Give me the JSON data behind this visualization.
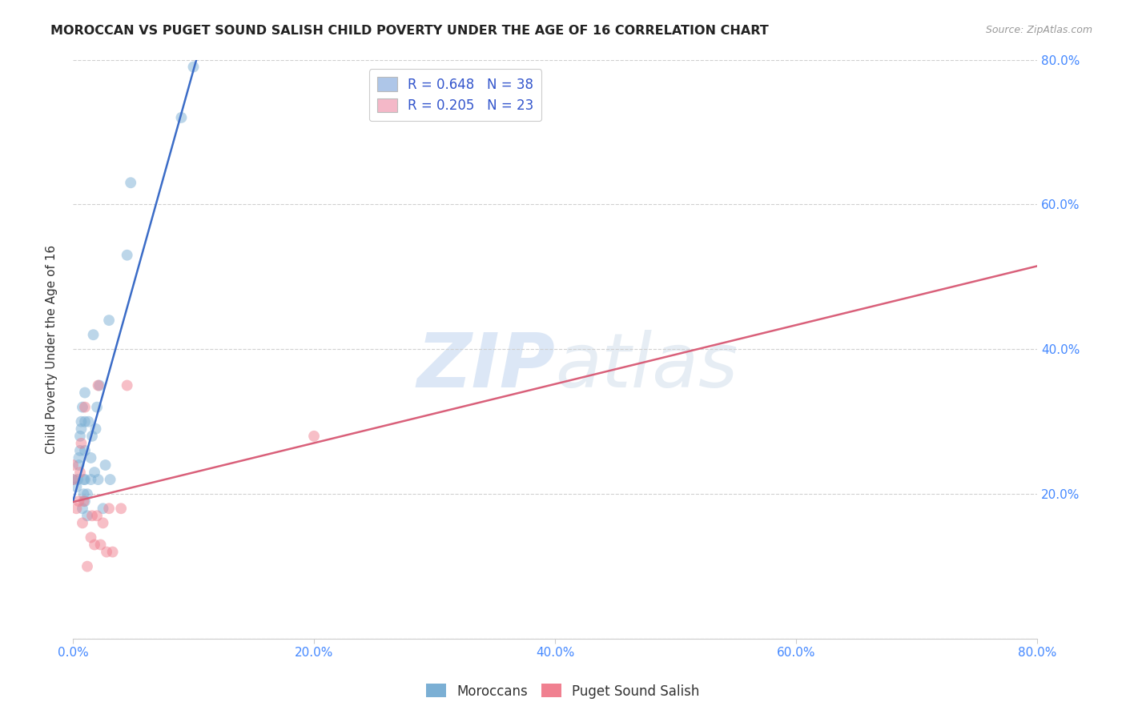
{
  "title": "MOROCCAN VS PUGET SOUND SALISH CHILD POVERTY UNDER THE AGE OF 16 CORRELATION CHART",
  "source": "Source: ZipAtlas.com",
  "ylabel": "Child Poverty Under the Age of 16",
  "xlim": [
    0.0,
    0.8
  ],
  "ylim": [
    0.0,
    0.8
  ],
  "xticks": [
    0.0,
    0.2,
    0.4,
    0.6,
    0.8
  ],
  "yticks": [
    0.0,
    0.2,
    0.4,
    0.6,
    0.8
  ],
  "xtick_labels": [
    "0.0%",
    "20.0%",
    "40.0%",
    "60.0%",
    "80.0%"
  ],
  "right_ytick_labels": [
    "20.0%",
    "40.0%",
    "60.0%",
    "80.0%"
  ],
  "right_yticks": [
    0.2,
    0.4,
    0.6,
    0.8
  ],
  "background_color": "#ffffff",
  "grid_color": "#d0d0d0",
  "watermark_zip": "ZIP",
  "watermark_atlas": "atlas",
  "legend_items": [
    {
      "label_r": "R = 0.648",
      "label_n": "N = 38",
      "color": "#aec6e8"
    },
    {
      "label_r": "R = 0.205",
      "label_n": "N = 23",
      "color": "#f4b8c8"
    }
  ],
  "moroccan_color": "#7bafd4",
  "puget_color": "#f08090",
  "moroccan_line_color": "#3b6cc7",
  "puget_line_color": "#d9607a",
  "moroccan_x": [
    0.0,
    0.003,
    0.004,
    0.005,
    0.005,
    0.006,
    0.006,
    0.007,
    0.007,
    0.008,
    0.008,
    0.009,
    0.009,
    0.01,
    0.01,
    0.01,
    0.01,
    0.01,
    0.012,
    0.012,
    0.013,
    0.015,
    0.015,
    0.016,
    0.017,
    0.018,
    0.019,
    0.02,
    0.021,
    0.022,
    0.025,
    0.027,
    0.03,
    0.031,
    0.045,
    0.048,
    0.09,
    0.1
  ],
  "moroccan_y": [
    0.22,
    0.21,
    0.22,
    0.24,
    0.25,
    0.26,
    0.28,
    0.29,
    0.3,
    0.32,
    0.18,
    0.2,
    0.22,
    0.19,
    0.22,
    0.26,
    0.3,
    0.34,
    0.17,
    0.2,
    0.3,
    0.22,
    0.25,
    0.28,
    0.42,
    0.23,
    0.29,
    0.32,
    0.22,
    0.35,
    0.18,
    0.24,
    0.44,
    0.22,
    0.53,
    0.63,
    0.72,
    0.79
  ],
  "puget_x": [
    0.0,
    0.0,
    0.003,
    0.005,
    0.006,
    0.007,
    0.008,
    0.009,
    0.01,
    0.012,
    0.015,
    0.016,
    0.018,
    0.02,
    0.021,
    0.023,
    0.025,
    0.028,
    0.03,
    0.033,
    0.04,
    0.045,
    0.2
  ],
  "puget_y": [
    0.22,
    0.24,
    0.18,
    0.19,
    0.23,
    0.27,
    0.16,
    0.19,
    0.32,
    0.1,
    0.14,
    0.17,
    0.13,
    0.17,
    0.35,
    0.13,
    0.16,
    0.12,
    0.18,
    0.12,
    0.18,
    0.35,
    0.28
  ],
  "moroccan_R": 0.648,
  "moroccan_N": 38,
  "puget_R": 0.205,
  "puget_N": 23,
  "marker_size": 100,
  "alpha": 0.5
}
